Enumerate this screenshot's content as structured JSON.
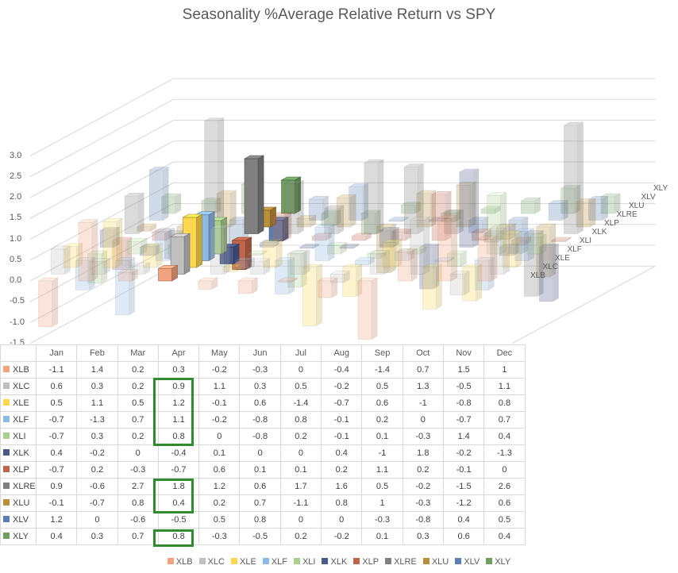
{
  "chart_data": {
    "type": "bar",
    "title": "Seasonality %Average Relative Return vs SPY",
    "categories": [
      "Jan",
      "Feb",
      "Mar",
      "Apr",
      "May",
      "Jun",
      "Jul",
      "Aug",
      "Sep",
      "Oct",
      "Nov",
      "Dec"
    ],
    "yticks": [
      "3.0",
      "2.5",
      "2.0",
      "1.5",
      "1.0",
      "0.5",
      "0.0",
      "-0.5",
      "-1.0",
      "-1.5"
    ],
    "ylim": [
      -1.5,
      3.0
    ],
    "depth_labels": [
      "XLB",
      "XLC",
      "XLE",
      "XLF",
      "XLI",
      "XLK",
      "XLP",
      "XLRE",
      "XLU",
      "XLV",
      "XLY"
    ],
    "series": [
      {
        "name": "XLB",
        "color": "#F4A27E",
        "values": [
          -1.1,
          1.4,
          0.2,
          0.3,
          -0.2,
          -0.3,
          0,
          -0.4,
          -1.4,
          0.7,
          1.5,
          1
        ]
      },
      {
        "name": "XLC",
        "color": "#BFBFBF",
        "values": [
          0.6,
          0.3,
          0.2,
          0.9,
          1.1,
          0.3,
          0.5,
          -0.2,
          0.5,
          1.3,
          -0.5,
          1.1
        ]
      },
      {
        "name": "XLE",
        "color": "#FFD84F",
        "values": [
          0.5,
          1.1,
          0.5,
          1.2,
          -0.1,
          0.6,
          -1.4,
          -0.7,
          0.6,
          -1,
          -0.8,
          0.8
        ]
      },
      {
        "name": "XLF",
        "color": "#8DB9E6",
        "values": [
          -0.7,
          -1.3,
          0.7,
          1.1,
          -0.2,
          -0.8,
          0.8,
          -0.1,
          0.2,
          0,
          -0.7,
          0.7
        ]
      },
      {
        "name": "XLI",
        "color": "#A9D18E",
        "values": [
          -0.7,
          0.3,
          0.2,
          0.8,
          0,
          -0.8,
          0.2,
          -0.1,
          0.1,
          -0.3,
          1.4,
          0.4
        ]
      },
      {
        "name": "XLK",
        "color": "#4B5A8C",
        "values": [
          0.4,
          -0.2,
          0,
          -0.4,
          0.1,
          0,
          0,
          0.4,
          -1,
          1.8,
          -0.2,
          -1.3
        ]
      },
      {
        "name": "XLP",
        "color": "#C0654A",
        "values": [
          -0.7,
          0.2,
          -0.3,
          -0.7,
          0.6,
          0.1,
          0.1,
          0.2,
          1.1,
          0.2,
          -0.1,
          0
        ]
      },
      {
        "name": "XLRE",
        "color": "#808080",
        "values": [
          0.9,
          -0.6,
          2.7,
          1.8,
          1.2,
          0.6,
          1.7,
          1.6,
          0.5,
          -0.2,
          -1.5,
          2.6
        ]
      },
      {
        "name": "XLU",
        "color": "#B8903A",
        "values": [
          -0.1,
          -0.7,
          0.8,
          0.4,
          0.2,
          0.7,
          -1.1,
          0.8,
          1,
          -0.3,
          -1.2,
          0.6
        ]
      },
      {
        "name": "XLV",
        "color": "#5B7FB5",
        "values": [
          1.2,
          0,
          -0.6,
          -0.5,
          0.5,
          0.8,
          0,
          0,
          -0.3,
          -0.8,
          0.4,
          0.5
        ]
      },
      {
        "name": "XLY",
        "color": "#70A060",
        "values": [
          0.4,
          0.3,
          0.7,
          0.8,
          -0.3,
          -0.5,
          0.2,
          -0.2,
          0.1,
          0.3,
          0.6,
          0.4
        ]
      }
    ],
    "highlighted_month": "Apr",
    "highlight_color": "#2E8B2E",
    "grid": true,
    "legend_position": "bottom"
  }
}
